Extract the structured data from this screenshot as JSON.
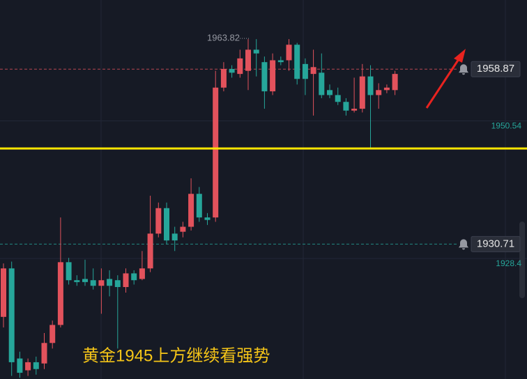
{
  "chart_data": {
    "type": "candlestick",
    "up_color": "#e2525c",
    "down_color": "#26a69a",
    "ylim": [
      1909,
      1970
    ],
    "yticks": [
      1950.54,
      1928.4
    ],
    "grid": true,
    "open": [
      1919.0,
      1926.8,
      1912.3,
      1910.4,
      1911.7,
      1911.5,
      1914.8,
      1917.7,
      1927.8,
      1924.9,
      1925.1,
      1924.9,
      1924.0,
      1925.1,
      1924.9,
      1923.8,
      1926.0,
      1925.1,
      1926.8,
      1932.4,
      1936.5,
      1932.4,
      1932.7,
      1933.5,
      1938.8,
      1935.0,
      1935.0,
      1955.9,
      1958.9,
      1958.1,
      1958.6,
      1962.0,
      1960.0,
      1955.3,
      1960.3,
      1960.3,
      1962.8,
      1959.7,
      1958.1,
      1958.3,
      1955.5,
      1954.7,
      1953.6,
      1952.2,
      1952.5,
      1957.7,
      1954.7,
      1955.5,
      1955.5
    ],
    "high": [
      1927.6,
      1927.9,
      1913.4,
      1912.3,
      1912.6,
      1916.4,
      1918.4,
      1935.0,
      1928.5,
      1925.7,
      1928.2,
      1926.8,
      1926.8,
      1926.5,
      1925.7,
      1926.8,
      1926.5,
      1929.6,
      1938.5,
      1937.4,
      1937.4,
      1933.5,
      1934.3,
      1941.3,
      1939.9,
      1935.7,
      1958.6,
      1960.0,
      1959.5,
      1962.0,
      1963.7,
      1963.7,
      1960.9,
      1961.4,
      1960.9,
      1963.7,
      1963.1,
      1960.6,
      1962.0,
      1961.4,
      1956.4,
      1955.9,
      1954.2,
      1957.5,
      1959.7,
      1959.5,
      1956.6,
      1956.4,
      1958.6
    ],
    "low": [
      1917.3,
      1909.5,
      1909.2,
      1909.5,
      1909.7,
      1910.6,
      1913.9,
      1917.3,
      1924.2,
      1924.0,
      1924.0,
      1923.4,
      1919.5,
      1922.3,
      1913.9,
      1922.9,
      1924.2,
      1924.9,
      1926.2,
      1931.8,
      1930.7,
      1929.6,
      1931.8,
      1932.9,
      1934.3,
      1933.8,
      1934.3,
      1955.3,
      1957.5,
      1957.5,
      1955.5,
      1957.7,
      1952.5,
      1954.7,
      1959.5,
      1958.6,
      1956.4,
      1954.7,
      1951.4,
      1954.2,
      1954.2,
      1953.1,
      1951.4,
      1951.9,
      1951.9,
      1946.1,
      1952.5,
      1955.0,
      1954.7
    ],
    "close": [
      1926.8,
      1911.7,
      1910.0,
      1911.7,
      1910.6,
      1914.8,
      1917.7,
      1927.8,
      1924.9,
      1924.6,
      1924.6,
      1924.0,
      1924.9,
      1924.0,
      1923.8,
      1926.0,
      1924.9,
      1926.8,
      1932.4,
      1936.5,
      1931.3,
      1931.3,
      1933.5,
      1938.8,
      1935.0,
      1934.6,
      1955.9,
      1958.9,
      1958.3,
      1960.6,
      1962.0,
      1961.4,
      1955.3,
      1960.3,
      1960.0,
      1962.8,
      1957.3,
      1957.3,
      1959.2,
      1954.7,
      1954.7,
      1953.6,
      1952.2,
      1952.5,
      1957.7,
      1954.7,
      1955.5,
      1955.9,
      1958.1
    ],
    "high_label": 1963.82,
    "alerts": [
      {
        "value": 1958.87,
        "color": "#e2525c"
      },
      {
        "value": 1930.71,
        "color": "#26a69a"
      }
    ],
    "support_line": {
      "value": 1946.1,
      "color": "#ffe600"
    },
    "annotation": "黄金1945上方继续看强势"
  }
}
